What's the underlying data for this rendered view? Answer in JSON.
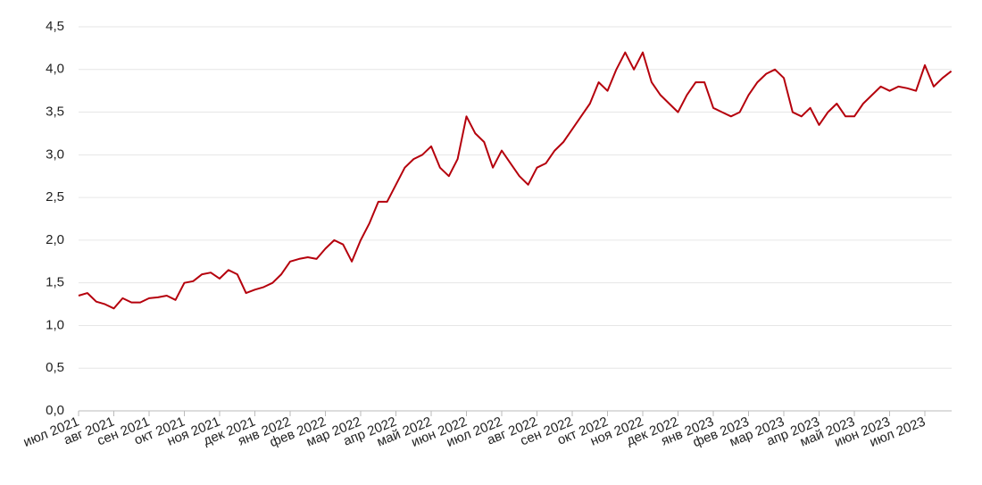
{
  "chart_data": {
    "type": "line",
    "categories": [
      "июл 2021",
      null,
      null,
      null,
      "авг 2021",
      null,
      null,
      null,
      "сен 2021",
      null,
      null,
      null,
      "окт 2021",
      null,
      null,
      null,
      "ноя 2021",
      null,
      null,
      null,
      "дек 2021",
      null,
      null,
      null,
      "янв 2022",
      null,
      null,
      null,
      "фев 2022",
      null,
      null,
      null,
      "мар 2022",
      null,
      null,
      null,
      "апр 2022",
      null,
      null,
      null,
      "май 2022",
      null,
      null,
      null,
      "июн 2022",
      null,
      null,
      null,
      "июл 2022",
      null,
      null,
      null,
      "авг 2022",
      null,
      null,
      null,
      "сен 2022",
      null,
      null,
      null,
      "окт 2022",
      null,
      null,
      null,
      "ноя 2022",
      null,
      null,
      null,
      "дек 2022",
      null,
      null,
      null,
      "янв 2023",
      null,
      null,
      null,
      "фев 2023",
      null,
      null,
      null,
      "мар 2023",
      null,
      null,
      null,
      "апр 2023",
      null,
      null,
      null,
      "май 2023",
      null,
      null,
      null,
      "июн 2023",
      null,
      null,
      null,
      "июл 2023",
      null,
      null,
      null
    ],
    "series": [
      {
        "color": "#b5000c",
        "values": [
          1.35,
          1.38,
          1.28,
          1.25,
          1.2,
          1.32,
          1.27,
          1.27,
          1.32,
          1.33,
          1.35,
          1.3,
          1.5,
          1.52,
          1.6,
          1.62,
          1.55,
          1.65,
          1.6,
          1.38,
          1.42,
          1.45,
          1.5,
          1.6,
          1.75,
          1.78,
          1.8,
          1.78,
          1.9,
          2.0,
          1.95,
          1.75,
          2.0,
          2.2,
          2.45,
          2.45,
          2.65,
          2.85,
          2.95,
          3.0,
          3.1,
          2.85,
          2.75,
          2.95,
          3.45,
          3.25,
          3.15,
          2.85,
          3.05,
          2.9,
          2.75,
          2.65,
          2.85,
          2.9,
          3.05,
          3.15,
          3.3,
          3.45,
          3.6,
          3.85,
          3.75,
          4.0,
          4.2,
          4.0,
          4.2,
          3.85,
          3.7,
          3.6,
          3.5,
          3.7,
          3.85,
          3.85,
          3.55,
          3.5,
          3.45,
          3.5,
          3.7,
          3.85,
          3.95,
          4.0,
          3.9,
          3.5,
          3.45,
          3.55,
          3.35,
          3.5,
          3.6,
          3.45,
          3.45,
          3.6,
          3.7,
          3.8,
          3.75,
          3.8,
          3.78,
          3.75,
          4.05,
          3.8,
          3.9,
          3.98
        ]
      }
    ],
    "ylim": [
      0,
      4.5
    ],
    "yticks": [
      {
        "value": 0,
        "label": "0,0"
      },
      {
        "value": 0.5,
        "label": "0,5"
      },
      {
        "value": 1,
        "label": "1,0"
      },
      {
        "value": 1.5,
        "label": "1,5"
      },
      {
        "value": 2,
        "label": "2,0"
      },
      {
        "value": 2.5,
        "label": "2,5"
      },
      {
        "value": 3,
        "label": "3,0"
      },
      {
        "value": 3.5,
        "label": "3,5"
      },
      {
        "value": 4,
        "label": "4,0"
      },
      {
        "value": 4.5,
        "label": "4,5"
      }
    ],
    "grid": true
  }
}
